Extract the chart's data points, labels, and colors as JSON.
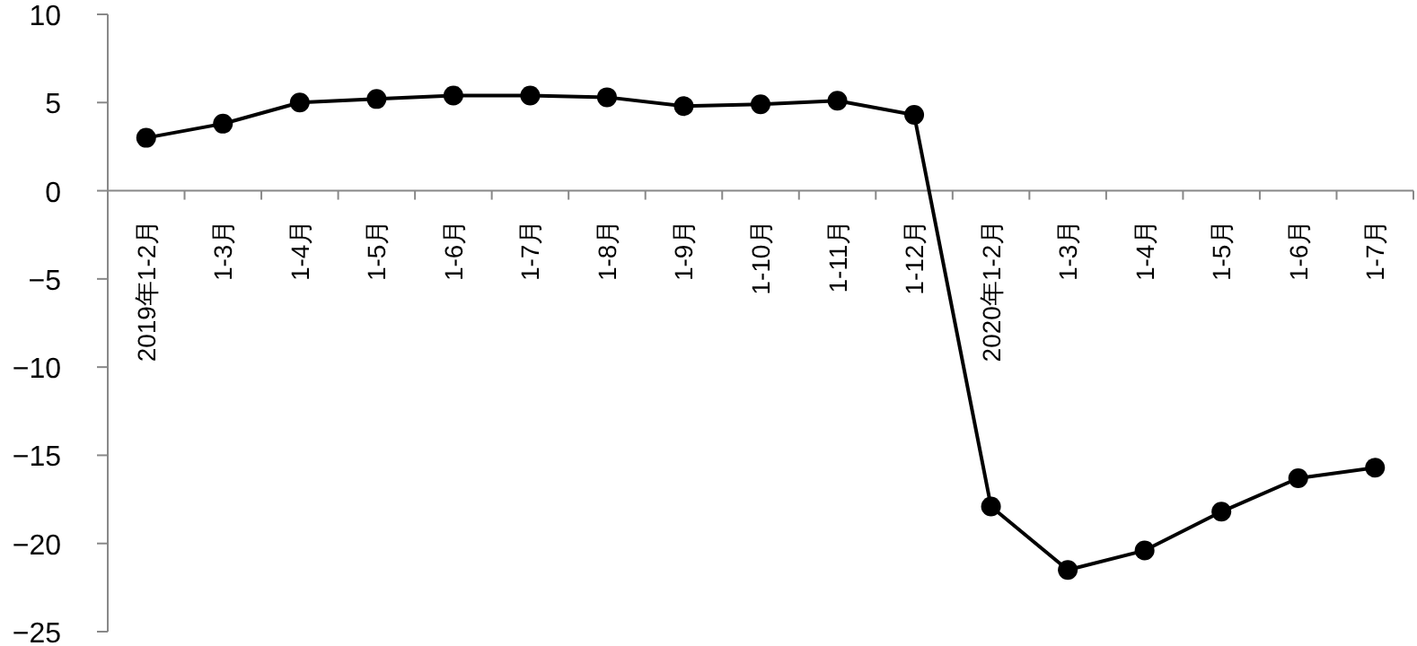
{
  "chart_data": {
    "type": "line",
    "categories": [
      "2019年1-2月",
      "1-3月",
      "1-4月",
      "1-5月",
      "1-6月",
      "1-7月",
      "1-8月",
      "1-9月",
      "1-10月",
      "1-11月",
      "1-12月",
      "2020年1-2月",
      "1-3月",
      "1-4月",
      "1-5月",
      "1-6月",
      "1-7月"
    ],
    "series": [
      {
        "color": "#000000",
        "values": [
          3.0,
          3.8,
          5.0,
          5.2,
          5.4,
          5.4,
          5.3,
          4.8,
          4.9,
          5.1,
          4.3,
          -17.9,
          -21.5,
          -20.4,
          -18.2,
          -16.3,
          -15.7
        ]
      }
    ],
    "ylim": [
      -25,
      10
    ],
    "yticks": [
      -25,
      -20,
      -15,
      -10,
      -5,
      0,
      5,
      10
    ],
    "grid": false,
    "marker": "circle",
    "line_style": "solid"
  }
}
